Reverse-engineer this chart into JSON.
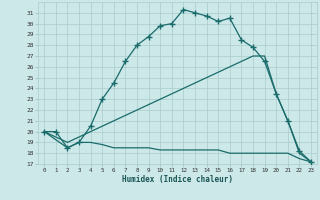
{
  "xlabel": "Humidex (Indice chaleur)",
  "background_color": "#cce8e8",
  "grid_color": "#aacccc",
  "line_color": "#1a6b6b",
  "xlim": [
    -0.5,
    23.5
  ],
  "ylim": [
    17,
    32
  ],
  "xticks": [
    0,
    1,
    2,
    3,
    4,
    5,
    6,
    7,
    8,
    9,
    10,
    11,
    12,
    13,
    14,
    15,
    16,
    17,
    18,
    19,
    20,
    21,
    22,
    23
  ],
  "yticks": [
    17,
    18,
    19,
    20,
    21,
    22,
    23,
    24,
    25,
    26,
    27,
    28,
    29,
    30,
    31
  ],
  "curve1_x": [
    0,
    1,
    2,
    3,
    4,
    5,
    6,
    7,
    8,
    9,
    10,
    11,
    12,
    13,
    14,
    15,
    16,
    17,
    18,
    19,
    20,
    21,
    22,
    23
  ],
  "curve1_y": [
    20.0,
    20.0,
    18.5,
    19.0,
    20.5,
    23.0,
    24.5,
    26.5,
    28.0,
    28.8,
    29.8,
    30.0,
    31.3,
    31.0,
    30.7,
    30.2,
    30.5,
    28.5,
    27.8,
    26.5,
    23.5,
    21.0,
    18.2,
    17.2
  ],
  "curve2_x": [
    0,
    2,
    3,
    4,
    5,
    6,
    7,
    8,
    9,
    10,
    11,
    12,
    13,
    14,
    15,
    16,
    17,
    18,
    19,
    20,
    21,
    22,
    23
  ],
  "curve2_y": [
    20.0,
    19.0,
    19.5,
    20.0,
    20.5,
    21.0,
    21.5,
    22.0,
    22.5,
    23.0,
    23.5,
    24.0,
    24.5,
    25.0,
    25.5,
    26.0,
    26.5,
    27.0,
    27.0,
    23.5,
    21.0,
    18.0,
    17.2
  ],
  "curve3_x": [
    0,
    2,
    3,
    4,
    5,
    6,
    7,
    8,
    9,
    10,
    11,
    12,
    13,
    14,
    15,
    16,
    17,
    18,
    19,
    20,
    21,
    22,
    23
  ],
  "curve3_y": [
    20.0,
    18.5,
    19.0,
    19.0,
    18.8,
    18.5,
    18.5,
    18.5,
    18.5,
    18.3,
    18.3,
    18.3,
    18.3,
    18.3,
    18.3,
    18.0,
    18.0,
    18.0,
    18.0,
    18.0,
    18.0,
    17.5,
    17.2
  ]
}
